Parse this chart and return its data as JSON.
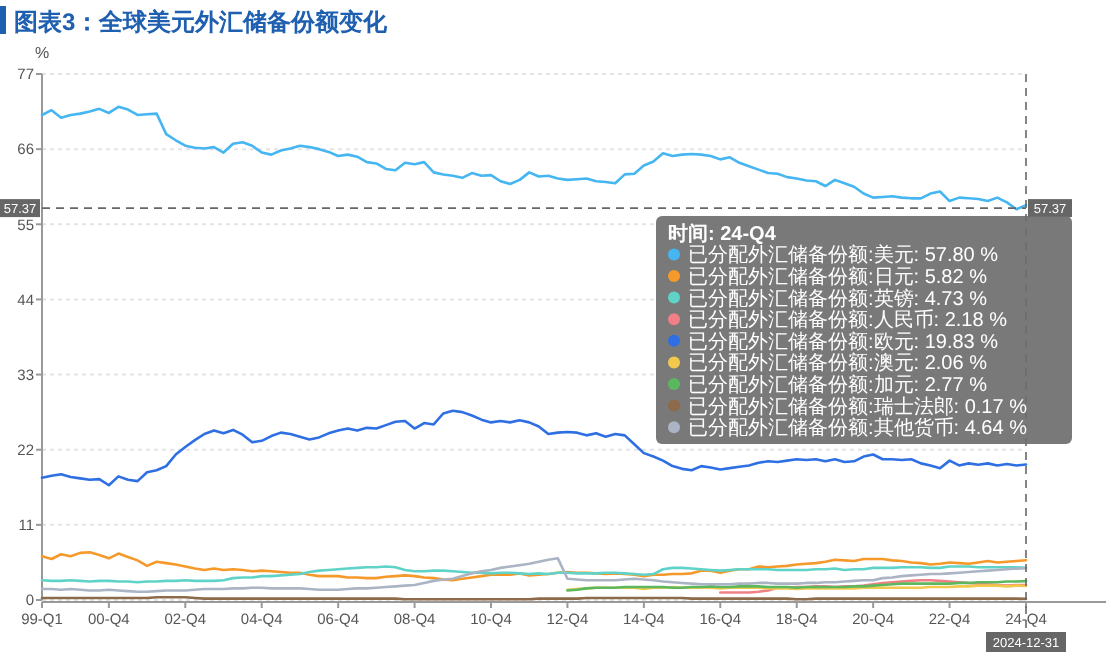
{
  "chart_data": {
    "type": "line",
    "title": "图表3：全球美元外汇储备份额变化",
    "ylabel": "%",
    "legend_title": "时间: 24-Q4",
    "legend": "right",
    "grid": "y",
    "marker": "none",
    "line_style": "solid",
    "ylim": [
      0,
      77
    ],
    "yticks": [
      0,
      11,
      22,
      33,
      44,
      55,
      66,
      77
    ],
    "categories": [
      "99-Q1",
      null,
      null,
      null,
      null,
      null,
      null,
      "00-Q4",
      null,
      null,
      null,
      null,
      null,
      null,
      null,
      "02-Q4",
      null,
      null,
      null,
      null,
      null,
      null,
      null,
      "04-Q4",
      null,
      null,
      null,
      null,
      null,
      null,
      null,
      "06-Q4",
      null,
      null,
      null,
      null,
      null,
      null,
      null,
      "08-Q4",
      null,
      null,
      null,
      null,
      null,
      null,
      null,
      "10-Q4",
      null,
      null,
      null,
      null,
      null,
      null,
      null,
      "12-Q4",
      null,
      null,
      null,
      null,
      null,
      null,
      null,
      "14-Q4",
      null,
      null,
      null,
      null,
      null,
      null,
      null,
      "16-Q4",
      null,
      null,
      null,
      null,
      null,
      null,
      null,
      "18-Q4",
      null,
      null,
      null,
      null,
      null,
      null,
      null,
      "20-Q4",
      null,
      null,
      null,
      null,
      null,
      null,
      null,
      "22-Q4",
      null,
      null,
      null,
      null,
      null,
      null,
      null,
      "24-Q4"
    ],
    "ref_lines": [
      {
        "axis": "y",
        "value": 57.37,
        "label": "57.37",
        "color": "#666666",
        "line_style": "dashed"
      },
      {
        "axis": "x",
        "value": "24-Q4",
        "label": "2024-12-31",
        "color": "#666666",
        "line_style": "dashed"
      }
    ],
    "series": [
      {
        "name": "已分配外汇储备份额:美元: 57.80 %",
        "color": "#45b6f2",
        "values": [
          71.0,
          71.7,
          70.6,
          71.0,
          71.2,
          71.5,
          71.9,
          71.3,
          72.2,
          71.8,
          71.0,
          71.1,
          71.2,
          68.2,
          67.3,
          66.5,
          66.2,
          66.1,
          66.3,
          65.5,
          66.8,
          67.0,
          66.5,
          65.5,
          65.2,
          65.8,
          66.1,
          66.5,
          66.3,
          66.0,
          65.6,
          65.0,
          65.2,
          64.9,
          64.1,
          63.9,
          63.1,
          62.9,
          64.0,
          63.8,
          64.1,
          62.6,
          62.3,
          62.1,
          61.8,
          62.5,
          62.1,
          62.2,
          61.3,
          60.9,
          61.5,
          62.6,
          62.0,
          62.1,
          61.7,
          61.5,
          61.6,
          61.7,
          61.3,
          61.2,
          61.0,
          62.3,
          62.4,
          63.6,
          64.2,
          65.4,
          65.0,
          65.2,
          65.3,
          65.2,
          65.0,
          64.5,
          64.8,
          64.0,
          63.5,
          63.0,
          62.5,
          62.4,
          61.9,
          61.7,
          61.4,
          61.3,
          60.6,
          61.5,
          61.0,
          60.5,
          59.5,
          58.9,
          59.0,
          59.1,
          58.9,
          58.8,
          58.8,
          59.5,
          59.8,
          58.4,
          58.9,
          58.8,
          58.7,
          58.4,
          58.9,
          58.2,
          57.2,
          57.8
        ]
      },
      {
        "name": "已分配外汇储备份额:日元: 5.82 %",
        "color": "#f5992b",
        "values": [
          6.4,
          6.0,
          6.7,
          6.4,
          6.9,
          7.0,
          6.6,
          6.1,
          6.8,
          6.3,
          5.8,
          5.0,
          5.6,
          5.4,
          5.2,
          4.9,
          4.6,
          4.4,
          4.6,
          4.4,
          4.5,
          4.4,
          4.2,
          4.3,
          4.2,
          4.1,
          4.0,
          4.0,
          3.7,
          3.5,
          3.5,
          3.5,
          3.3,
          3.3,
          3.2,
          3.2,
          3.4,
          3.5,
          3.6,
          3.5,
          3.3,
          3.2,
          3.0,
          2.9,
          3.1,
          3.3,
          3.5,
          3.7,
          3.7,
          3.7,
          3.9,
          3.6,
          3.7,
          3.8,
          4.0,
          4.1,
          4.0,
          4.0,
          3.9,
          3.8,
          3.9,
          3.8,
          3.7,
          3.5,
          3.7,
          3.7,
          3.8,
          3.8,
          3.9,
          4.3,
          4.3,
          4.0,
          4.3,
          4.5,
          4.5,
          4.9,
          4.8,
          4.9,
          5.0,
          5.2,
          5.3,
          5.4,
          5.6,
          5.9,
          5.8,
          5.7,
          6.0,
          6.0,
          6.0,
          5.8,
          5.7,
          5.5,
          5.4,
          5.2,
          5.3,
          5.5,
          5.4,
          5.3,
          5.5,
          5.7,
          5.5,
          5.6,
          5.7,
          5.82
        ]
      },
      {
        "name": "已分配外汇储备份额:英镑: 4.73 %",
        "color": "#5fd3c8",
        "values": [
          2.9,
          2.8,
          2.8,
          2.9,
          2.8,
          2.7,
          2.8,
          2.8,
          2.7,
          2.7,
          2.6,
          2.7,
          2.7,
          2.8,
          2.8,
          2.9,
          2.8,
          2.8,
          2.8,
          2.9,
          3.2,
          3.3,
          3.3,
          3.5,
          3.5,
          3.6,
          3.7,
          3.8,
          4.1,
          4.3,
          4.4,
          4.5,
          4.6,
          4.7,
          4.8,
          4.8,
          4.9,
          4.8,
          4.4,
          4.2,
          4.2,
          4.3,
          4.3,
          4.2,
          4.1,
          4.0,
          4.0,
          3.9,
          4.0,
          4.0,
          3.9,
          3.8,
          3.9,
          3.8,
          4.0,
          4.0,
          3.9,
          3.9,
          3.9,
          4.0,
          4.0,
          3.9,
          3.8,
          3.7,
          3.8,
          4.5,
          4.7,
          4.7,
          4.6,
          4.5,
          4.4,
          4.3,
          4.4,
          4.5,
          4.5,
          4.5,
          4.5,
          4.4,
          4.4,
          4.4,
          4.4,
          4.5,
          4.5,
          4.6,
          4.4,
          4.5,
          4.5,
          4.7,
          4.7,
          4.7,
          4.8,
          4.8,
          4.8,
          4.7,
          4.7,
          4.9,
          4.9,
          4.9,
          4.8,
          4.8,
          4.8,
          4.8,
          4.8,
          4.73
        ]
      },
      {
        "name": "已分配外汇储备份额:人民币: 2.18 %",
        "color": "#f07f86",
        "values": [
          null,
          null,
          null,
          null,
          null,
          null,
          null,
          null,
          null,
          null,
          null,
          null,
          null,
          null,
          null,
          null,
          null,
          null,
          null,
          null,
          null,
          null,
          null,
          null,
          null,
          null,
          null,
          null,
          null,
          null,
          null,
          null,
          null,
          null,
          null,
          null,
          null,
          null,
          null,
          null,
          null,
          null,
          null,
          null,
          null,
          null,
          null,
          null,
          null,
          null,
          null,
          null,
          null,
          null,
          null,
          null,
          null,
          null,
          null,
          null,
          null,
          null,
          null,
          null,
          null,
          null,
          null,
          null,
          null,
          null,
          null,
          1.1,
          1.1,
          1.1,
          1.1,
          1.2,
          1.4,
          1.8,
          1.8,
          1.9,
          1.9,
          2.0,
          2.0,
          1.9,
          2.0,
          2.0,
          2.1,
          2.3,
          2.5,
          2.6,
          2.7,
          2.8,
          2.9,
          2.9,
          2.8,
          2.7,
          2.6,
          2.5,
          2.4,
          2.3,
          2.2,
          2.1,
          2.2,
          2.18
        ]
      },
      {
        "name": "已分配外汇储备份额:欧元: 19.83 %",
        "color": "#2f6fe4",
        "values": [
          17.9,
          18.2,
          18.4,
          18.0,
          17.8,
          17.6,
          17.7,
          16.8,
          18.1,
          17.6,
          17.4,
          18.7,
          19.0,
          19.6,
          21.3,
          22.4,
          23.4,
          24.3,
          24.8,
          24.4,
          24.9,
          24.2,
          23.1,
          23.3,
          24.0,
          24.5,
          24.3,
          23.9,
          23.5,
          23.8,
          24.4,
          24.8,
          25.1,
          24.8,
          25.2,
          25.1,
          25.6,
          26.1,
          26.2,
          25.1,
          25.9,
          25.7,
          27.3,
          27.7,
          27.5,
          27.0,
          26.4,
          26.0,
          26.2,
          26.0,
          26.3,
          26.0,
          25.4,
          24.3,
          24.5,
          24.6,
          24.5,
          24.1,
          24.4,
          23.9,
          24.3,
          24.1,
          22.8,
          21.5,
          21.0,
          20.4,
          19.6,
          19.2,
          19.0,
          19.6,
          19.4,
          19.1,
          19.3,
          19.5,
          19.7,
          20.1,
          20.3,
          20.2,
          20.4,
          20.6,
          20.5,
          20.6,
          20.3,
          20.6,
          20.2,
          20.3,
          21.0,
          21.3,
          20.6,
          20.6,
          20.5,
          20.6,
          20.0,
          19.7,
          19.3,
          20.4,
          19.7,
          20.0,
          19.8,
          20.0,
          19.7,
          19.9,
          19.7,
          19.83
        ]
      },
      {
        "name": "已分配外汇储备份额:澳元: 2.06 %",
        "color": "#f2c94c",
        "values": [
          null,
          null,
          null,
          null,
          null,
          null,
          null,
          null,
          null,
          null,
          null,
          null,
          null,
          null,
          null,
          null,
          null,
          null,
          null,
          null,
          null,
          null,
          null,
          null,
          null,
          null,
          null,
          null,
          null,
          null,
          null,
          null,
          null,
          null,
          null,
          null,
          null,
          null,
          null,
          null,
          null,
          null,
          null,
          null,
          null,
          null,
          null,
          null,
          null,
          null,
          null,
          null,
          null,
          null,
          null,
          1.5,
          1.6,
          1.7,
          1.8,
          1.8,
          1.8,
          1.8,
          1.8,
          1.6,
          1.8,
          1.8,
          1.9,
          1.8,
          1.8,
          1.8,
          1.8,
          1.7,
          1.8,
          1.8,
          1.8,
          1.8,
          1.7,
          1.7,
          1.7,
          1.6,
          1.7,
          1.7,
          1.7,
          1.7,
          1.7,
          1.7,
          1.8,
          1.8,
          1.8,
          1.8,
          1.8,
          1.8,
          1.8,
          1.9,
          1.9,
          1.9,
          2.0,
          2.0,
          2.1,
          2.1,
          2.1,
          2.0,
          2.1,
          2.06
        ]
      },
      {
        "name": "已分配外汇储备份额:加元: 2.77 %",
        "color": "#5cb85f",
        "values": [
          null,
          null,
          null,
          null,
          null,
          null,
          null,
          null,
          null,
          null,
          null,
          null,
          null,
          null,
          null,
          null,
          null,
          null,
          null,
          null,
          null,
          null,
          null,
          null,
          null,
          null,
          null,
          null,
          null,
          null,
          null,
          null,
          null,
          null,
          null,
          null,
          null,
          null,
          null,
          null,
          null,
          null,
          null,
          null,
          null,
          null,
          null,
          null,
          null,
          null,
          null,
          null,
          null,
          null,
          null,
          1.4,
          1.5,
          1.7,
          1.8,
          1.8,
          1.8,
          1.9,
          1.9,
          1.9,
          1.9,
          1.9,
          1.8,
          1.8,
          1.9,
          1.9,
          2.0,
          1.9,
          1.9,
          2.0,
          2.0,
          2.0,
          1.9,
          1.9,
          1.9,
          1.8,
          1.9,
          1.9,
          1.9,
          1.9,
          1.9,
          2.0,
          2.0,
          2.1,
          2.2,
          2.3,
          2.4,
          2.4,
          2.4,
          2.4,
          2.4,
          2.4,
          2.5,
          2.5,
          2.6,
          2.6,
          2.6,
          2.7,
          2.7,
          2.77
        ]
      },
      {
        "name": "已分配外汇储备份额:瑞士法郎: 0.17 %",
        "color": "#8d6a4a",
        "values": [
          0.3,
          0.3,
          0.3,
          0.3,
          0.3,
          0.3,
          0.3,
          0.3,
          0.3,
          0.3,
          0.3,
          0.3,
          0.4,
          0.4,
          0.4,
          0.4,
          0.3,
          0.2,
          0.2,
          0.2,
          0.2,
          0.2,
          0.2,
          0.2,
          0.2,
          0.2,
          0.2,
          0.2,
          0.2,
          0.2,
          0.2,
          0.2,
          0.2,
          0.2,
          0.2,
          0.2,
          0.2,
          0.2,
          0.1,
          0.1,
          0.1,
          0.1,
          0.1,
          0.1,
          0.1,
          0.1,
          0.1,
          0.1,
          0.1,
          0.1,
          0.1,
          0.1,
          0.2,
          0.2,
          0.2,
          0.2,
          0.2,
          0.3,
          0.3,
          0.3,
          0.3,
          0.3,
          0.3,
          0.3,
          0.3,
          0.3,
          0.3,
          0.3,
          0.2,
          0.2,
          0.2,
          0.2,
          0.2,
          0.2,
          0.2,
          0.2,
          0.2,
          0.2,
          0.2,
          0.1,
          0.1,
          0.2,
          0.2,
          0.2,
          0.2,
          0.2,
          0.2,
          0.2,
          0.2,
          0.2,
          0.2,
          0.2,
          0.2,
          0.2,
          0.2,
          0.2,
          0.2,
          0.2,
          0.2,
          0.2,
          0.2,
          0.2,
          0.2,
          0.17
        ]
      },
      {
        "name": "已分配外汇储备份额:其他货币: 4.64 %",
        "color": "#aab4c4",
        "values": [
          1.6,
          1.6,
          1.5,
          1.6,
          1.5,
          1.4,
          1.4,
          1.5,
          1.4,
          1.3,
          1.2,
          1.2,
          1.3,
          1.4,
          1.4,
          1.4,
          1.5,
          1.6,
          1.6,
          1.6,
          1.7,
          1.7,
          1.8,
          1.8,
          1.7,
          1.7,
          1.7,
          1.7,
          1.6,
          1.5,
          1.5,
          1.5,
          1.6,
          1.7,
          1.7,
          1.8,
          1.9,
          2.0,
          2.1,
          2.2,
          2.5,
          2.8,
          3.0,
          3.1,
          3.5,
          3.9,
          4.2,
          4.4,
          4.7,
          4.9,
          5.1,
          5.3,
          5.6,
          5.9,
          6.1,
          3.1,
          3.0,
          2.9,
          2.9,
          2.9,
          2.9,
          3.0,
          3.1,
          3.0,
          2.9,
          2.7,
          2.6,
          2.5,
          2.4,
          2.3,
          2.3,
          2.3,
          2.3,
          2.4,
          2.4,
          2.5,
          2.5,
          2.4,
          2.4,
          2.4,
          2.5,
          2.5,
          2.6,
          2.6,
          2.7,
          2.8,
          2.9,
          2.9,
          3.2,
          3.3,
          3.5,
          3.6,
          3.7,
          3.8,
          3.8,
          3.9,
          4.0,
          4.1,
          4.2,
          4.3,
          4.4,
          4.5,
          4.6,
          4.64
        ]
      }
    ]
  }
}
